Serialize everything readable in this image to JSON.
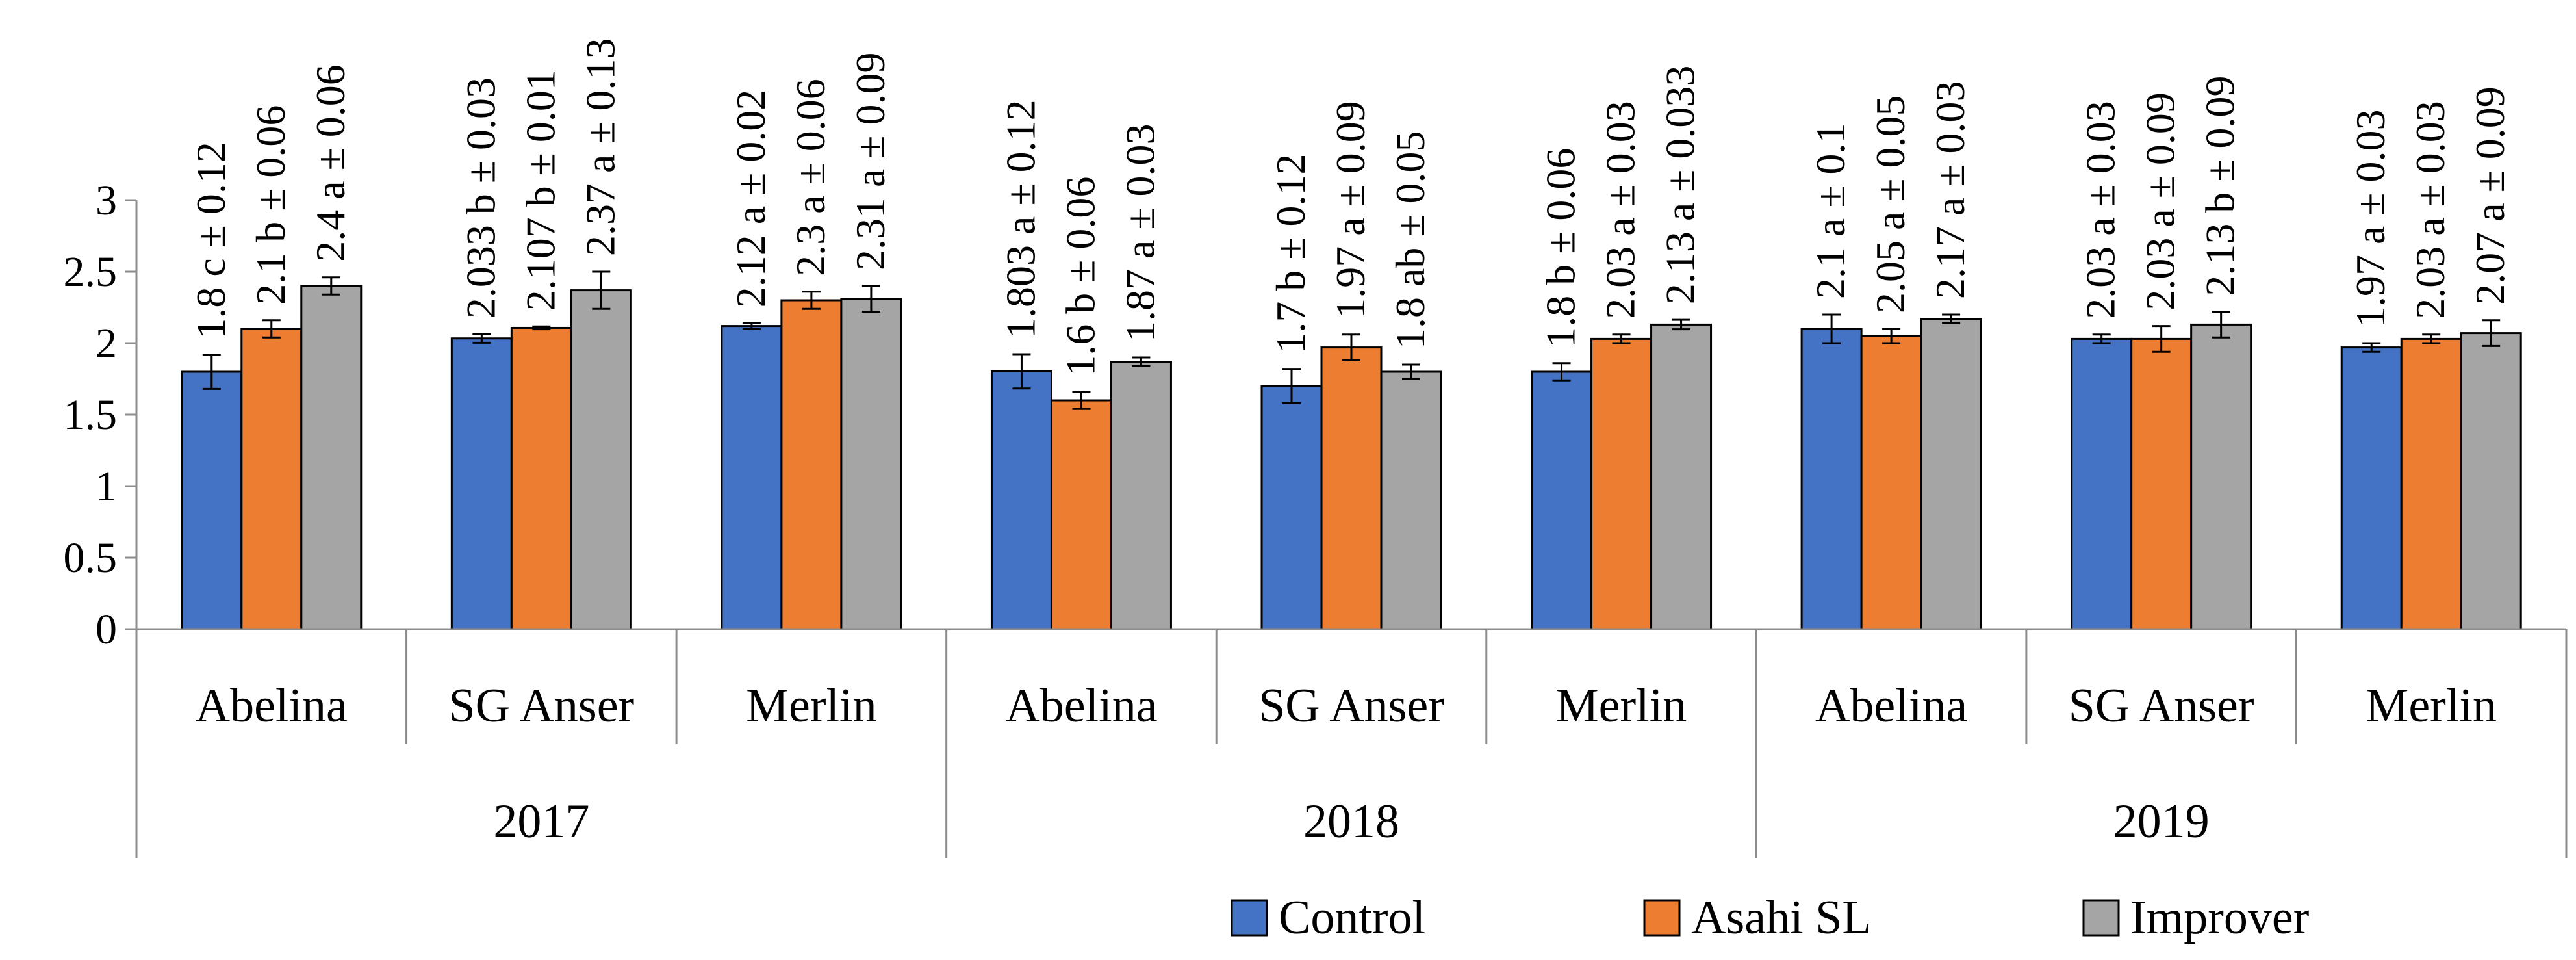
{
  "chart_data": {
    "type": "bar",
    "title": "",
    "xlabel": "",
    "ylabel": "",
    "ylim": [
      0,
      3
    ],
    "yticks": [
      0,
      0.5,
      1,
      1.5,
      2,
      2.5,
      3
    ],
    "ytick_labels": [
      "0",
      "0.5",
      "1",
      "1.5",
      "2",
      "2.5",
      "3"
    ],
    "grid": false,
    "legend_position": "bottom",
    "groups": [
      {
        "year": "2017",
        "categories": [
          "Abelina",
          "SG Anser",
          "Merlin"
        ]
      },
      {
        "year": "2018",
        "categories": [
          "Abelina",
          "SG Anser",
          "Merlin"
        ]
      },
      {
        "year": "2019",
        "categories": [
          "Abelina",
          "SG Anser",
          "Merlin"
        ]
      }
    ],
    "categories": [
      "Abelina",
      "SG Anser",
      "Merlin",
      "Abelina",
      "SG Anser",
      "Merlin",
      "Abelina",
      "SG Anser",
      "Merlin"
    ],
    "series": [
      {
        "name": "Control",
        "color": "#4472C4",
        "values": [
          1.8,
          2.033,
          2.12,
          1.803,
          1.7,
          1.8,
          2.1,
          2.03,
          1.97
        ],
        "errors": [
          0.12,
          0.03,
          0.02,
          0.12,
          0.12,
          0.06,
          0.1,
          0.03,
          0.03
        ],
        "labels": [
          "1.8 c ± 0.12",
          "2.033 b ± 0.03",
          "2.12 a ± 0.02",
          "1.803 a ± 0.12",
          "1.7 b ± 0.12",
          "1.8 b ± 0.06",
          "2.1 a ± 0.1",
          "2.03 a ± 0.03",
          "1.97 a ± 0.03"
        ]
      },
      {
        "name": "Asahi SL",
        "color": "#ED7D31",
        "values": [
          2.1,
          2.107,
          2.3,
          1.6,
          1.97,
          2.03,
          2.05,
          2.03,
          2.03
        ],
        "errors": [
          0.06,
          0.01,
          0.06,
          0.06,
          0.09,
          0.03,
          0.05,
          0.09,
          0.03
        ],
        "labels": [
          "2.1 b ± 0.06",
          "2.107 b ± 0.01",
          "2.3 a ± 0.06",
          "1.6 b ± 0.06",
          "1.97 a ± 0.09",
          "2.03 a ± 0.03",
          "2.05 a ± 0.05",
          "2.03 a ± 0.09",
          "2.03 a ± 0.03"
        ]
      },
      {
        "name": "Improver",
        "color": "#A5A5A5",
        "values": [
          2.4,
          2.37,
          2.31,
          1.87,
          1.8,
          2.13,
          2.17,
          2.13,
          2.07
        ],
        "errors": [
          0.06,
          0.13,
          0.09,
          0.03,
          0.05,
          0.033,
          0.03,
          0.09,
          0.09
        ],
        "labels": [
          "2.4 a ± 0.06",
          "2.37 a ± 0.13",
          "2.31 a ± 0.09",
          "1.87 a ± 0.03",
          "1.8 ab ± 0.05",
          "2.13 a ± 0.033",
          "2.17 a ± 0.03",
          "2.13 b ± 0.09",
          "2.07 a ± 0.09"
        ]
      }
    ],
    "error_bar_caps": true
  }
}
